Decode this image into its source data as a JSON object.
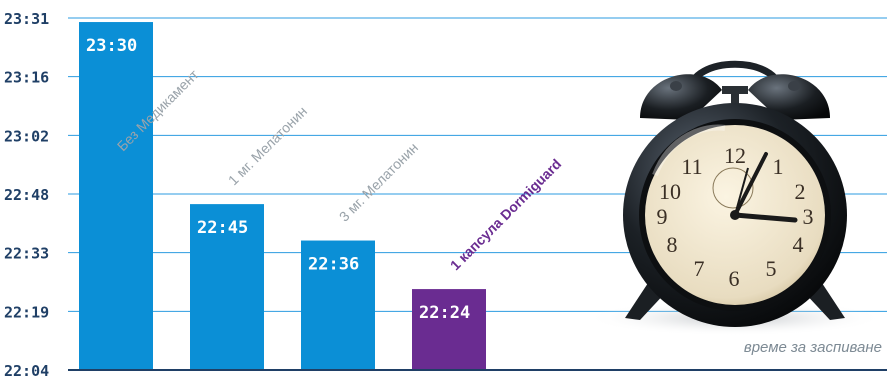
{
  "chart_data": {
    "type": "bar",
    "title": "",
    "xlabel": "",
    "ylabel": "",
    "y_axis_label": "време за заспиване",
    "yticks": [
      "22:04",
      "22:19",
      "22:33",
      "22:48",
      "23:02",
      "23:16",
      "23:31"
    ],
    "ylim_minutes": [
      1324,
      1411
    ],
    "grid": true,
    "categories": [
      "Без Медикамент",
      "1 мг. Мелатонин",
      "3 мг. Мелатонин",
      "1 капсула Dormiguard"
    ],
    "value_labels": [
      "23:30",
      "22:45",
      "22:36",
      "22:24"
    ],
    "values_minutes": [
      1410,
      1365,
      1356,
      1344
    ],
    "bar_colors": [
      "#0b8fd6",
      "#0b8fd6",
      "#0b8fd6",
      "#6a2c91"
    ],
    "category_label_colors": [
      "#9aa3aa",
      "#9aa3aa",
      "#9aa3aa",
      "#6a2c91"
    ]
  },
  "colors": {
    "grid": "#2b9be0",
    "axis": "#1f3f66"
  },
  "decoration": {
    "image": "alarm-clock"
  }
}
